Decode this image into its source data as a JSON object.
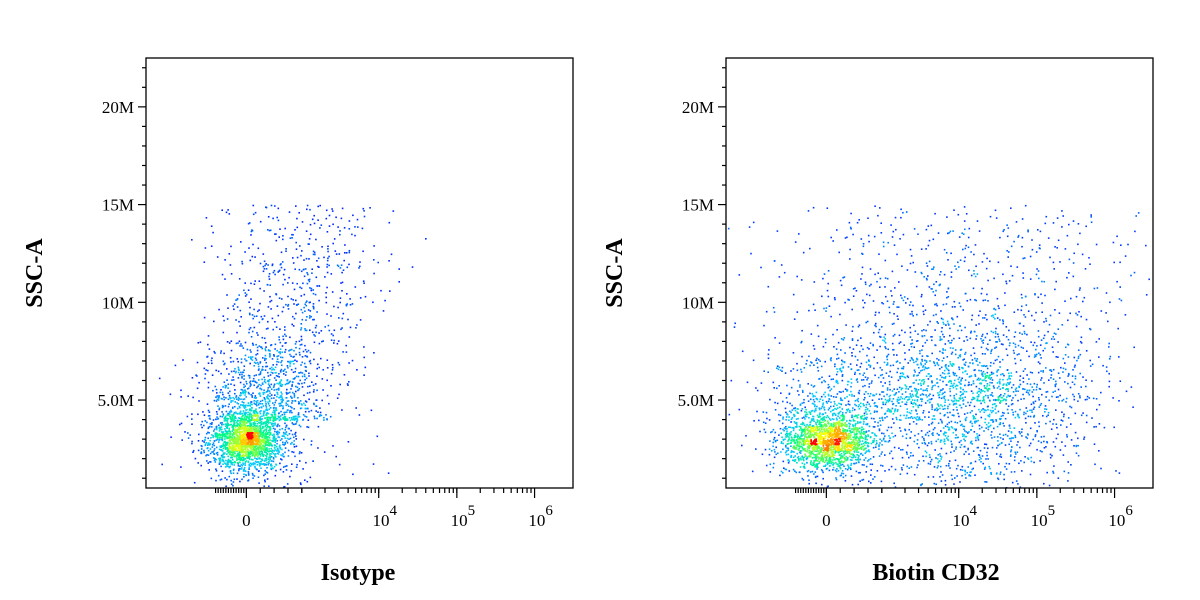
{
  "chart_data": [
    {
      "type": "scatter",
      "density_colored": true,
      "xlabel": "Isotype",
      "ylabel": "SSC-A",
      "x_scale": "biexponential",
      "y_ticks": [
        "5.0M",
        "10M",
        "15M",
        "20M"
      ],
      "y_tick_values": [
        5000000,
        10000000,
        15000000,
        20000000
      ],
      "ylim": [
        500000,
        22500000
      ],
      "x_ticks": [
        "0",
        "10^4",
        "10^5",
        "10^6"
      ],
      "x_tick_values": [
        0,
        10000,
        100000,
        1000000
      ],
      "populations": [
        {
          "center_x": 0,
          "center_y": 3100000,
          "description": "single dense population near 0 with upward tail to ~15M SSC-A"
        }
      ],
      "colormap": [
        "#0000ff",
        "#00c8ff",
        "#00ff80",
        "#ffff00",
        "#ff0000"
      ]
    },
    {
      "type": "scatter",
      "density_colored": true,
      "xlabel": "Biotin CD32",
      "ylabel": "SSC-A",
      "x_scale": "biexponential",
      "y_ticks": [
        "5.0M",
        "10M",
        "15M",
        "20M"
      ],
      "y_tick_values": [
        5000000,
        10000000,
        15000000,
        20000000
      ],
      "ylim": [
        500000,
        22500000
      ],
      "x_ticks": [
        "0",
        "10^4",
        "10^5",
        "10^6"
      ],
      "x_tick_values": [
        0,
        10000,
        100000,
        1000000
      ],
      "populations": [
        {
          "center_x": 0,
          "center_y": 3000000,
          "description": "dense negative population near 0"
        },
        {
          "center_x": 20000,
          "center_y": 5000000,
          "description": "broad CD32-positive population between 10^3 and 10^5 up to ~15M SSC-A"
        }
      ],
      "colormap": [
        "#0000ff",
        "#00c8ff",
        "#00ff80",
        "#ffff00",
        "#ff0000"
      ]
    }
  ]
}
